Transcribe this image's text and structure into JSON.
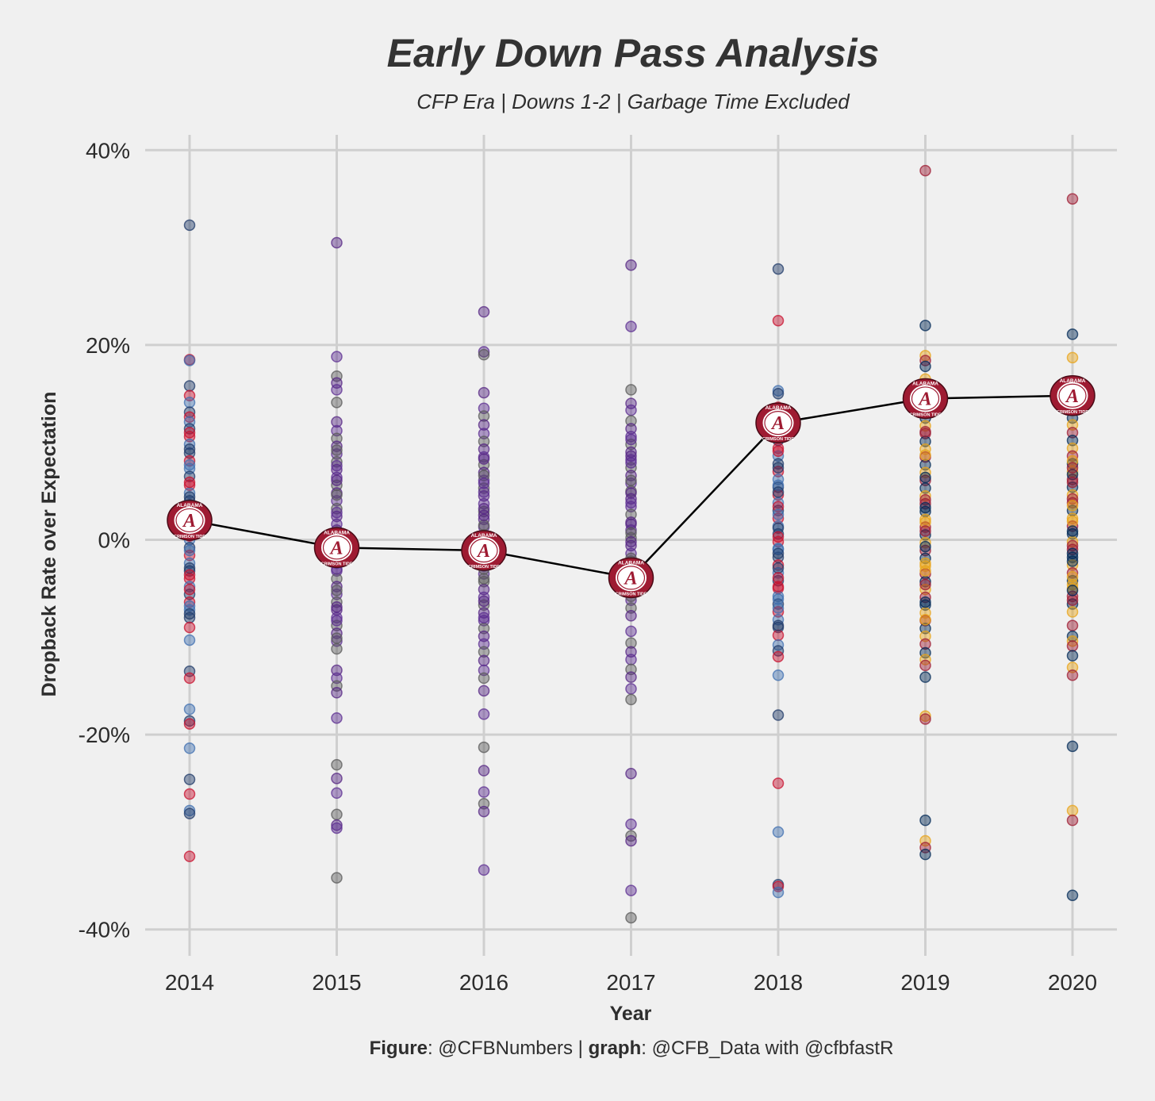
{
  "title": "Early Down Pass Analysis",
  "subtitle": "CFP Era | Downs 1-2 | Garbage Time Excluded",
  "footer": {
    "fig_label": "Figure",
    "fig_value": ": @CFBNumbers | ",
    "graph_label": "graph",
    "graph_value": ": @CFB_Data with @cfbfastR"
  },
  "logo": {
    "icon": "alabama-crimson-tide-logo",
    "text_top": "ALABAMA",
    "text_bottom": "CRIMSON TIDE",
    "letter": "A",
    "colors": {
      "crimson": "#9e1b32",
      "white": "#ffffff"
    }
  },
  "chart_data": {
    "type": "scatter",
    "xlabel": "Year",
    "ylabel": "Dropback Rate over Expectation",
    "x_ticks": [
      "2014",
      "2015",
      "2016",
      "2017",
      "2018",
      "2019",
      "2020"
    ],
    "y_ticks": [
      -40,
      -20,
      0,
      20,
      40
    ],
    "y_tick_labels": [
      "-40%",
      "-20%",
      "0%",
      "20%",
      "40%"
    ],
    "ylim": [
      -42,
      42
    ],
    "grid": true,
    "colors": [
      "#1f3a68",
      "#9e1b32",
      "#e31b23",
      "#0c2340",
      "#5a5a5a",
      "#3f6fb0",
      "#e8a317",
      "#f26522",
      "#1e5631",
      "#5c2d91",
      "#c8102e",
      "#002855",
      "#7a0019",
      "#c99700",
      "#552583"
    ],
    "series": [
      {
        "name": "",
        "type": "scatter",
        "x": [
          "2014",
          "2014",
          "2014",
          "2014",
          "2014",
          "2014",
          "2014",
          "2014",
          "2014",
          "2014",
          "2014",
          "2014",
          "2014",
          "2014",
          "2014",
          "2014",
          "2014",
          "2014",
          "2014",
          "2014",
          "2014",
          "2014",
          "2014",
          "2014",
          "2014",
          "2014",
          "2014",
          "2014",
          "2014",
          "2014",
          "2014",
          "2014",
          "2014",
          "2014",
          "2014",
          "2014",
          "2014",
          "2014",
          "2014",
          "2014",
          "2014",
          "2014",
          "2014",
          "2014",
          "2014",
          "2014",
          "2014",
          "2014",
          "2014",
          "2014",
          "2014",
          "2014",
          "2014",
          "2014",
          "2014",
          "2014",
          "2014",
          "2014",
          "2014",
          "2014",
          "2014",
          "2014"
        ],
        "y": [
          32.3,
          18.5,
          18.4,
          15.8,
          14.8,
          14.1,
          13.1,
          12.6,
          12.1,
          11.4,
          10.6,
          9.8,
          8.9,
          8.1,
          7.3,
          6.5,
          5.6,
          4.8,
          4.0,
          3.2,
          2.4,
          1.6,
          0.8,
          0.0,
          -0.8,
          -1.6,
          -2.4,
          -3.2,
          -4.0,
          -4.8,
          -5.6,
          -6.4,
          -7.2,
          -8.0,
          -9.0,
          -10.3,
          -13.5,
          -14.2,
          -17.4,
          -18.6,
          -18.9,
          -21.4,
          -24.6,
          -26.1,
          -27.8,
          -28.1,
          -32.5,
          1.2,
          3.6,
          5.9,
          7.7,
          9.3,
          11.0,
          -1.1,
          -2.9,
          -5.1,
          -6.8,
          -7.6,
          0.4,
          2.0,
          4.4,
          -3.6
        ]
      },
      {
        "name": "",
        "type": "scatter",
        "x": [
          "2015",
          "2015",
          "2015",
          "2015",
          "2015",
          "2015",
          "2015",
          "2015",
          "2015",
          "2015",
          "2015",
          "2015",
          "2015",
          "2015",
          "2015",
          "2015",
          "2015",
          "2015",
          "2015",
          "2015",
          "2015",
          "2015",
          "2015",
          "2015",
          "2015",
          "2015",
          "2015",
          "2015",
          "2015",
          "2015",
          "2015",
          "2015",
          "2015",
          "2015",
          "2015",
          "2015",
          "2015",
          "2015",
          "2015",
          "2015",
          "2015",
          "2015",
          "2015",
          "2015",
          "2015",
          "2015",
          "2015",
          "2015",
          "2015",
          "2015",
          "2015",
          "2015",
          "2015",
          "2015",
          "2015",
          "2015",
          "2015",
          "2015",
          "2015",
          "2015"
        ],
        "y": [
          30.5,
          18.8,
          16.8,
          16.1,
          15.4,
          14.1,
          12.1,
          11.2,
          10.4,
          9.6,
          8.8,
          8.0,
          7.2,
          6.4,
          5.6,
          4.8,
          4.0,
          3.2,
          2.4,
          1.6,
          0.8,
          0.0,
          -0.8,
          -1.6,
          -2.4,
          -3.2,
          -4.0,
          -4.8,
          -5.6,
          -6.4,
          -7.2,
          -8.0,
          -8.8,
          -9.6,
          -10.4,
          -11.2,
          -13.4,
          -14.2,
          -15.0,
          -15.7,
          -18.3,
          -23.1,
          -24.5,
          -26.0,
          -28.2,
          -29.3,
          -29.6,
          -34.7,
          1.0,
          2.8,
          4.6,
          6.1,
          7.6,
          9.2,
          -1.2,
          -3.0,
          -5.2,
          -6.9,
          -8.3,
          -10.1
        ]
      },
      {
        "name": "",
        "type": "scatter",
        "x": [
          "2016",
          "2016",
          "2016",
          "2016",
          "2016",
          "2016",
          "2016",
          "2016",
          "2016",
          "2016",
          "2016",
          "2016",
          "2016",
          "2016",
          "2016",
          "2016",
          "2016",
          "2016",
          "2016",
          "2016",
          "2016",
          "2016",
          "2016",
          "2016",
          "2016",
          "2016",
          "2016",
          "2016",
          "2016",
          "2016",
          "2016",
          "2016",
          "2016",
          "2016",
          "2016",
          "2016",
          "2016",
          "2016",
          "2016",
          "2016",
          "2016",
          "2016",
          "2016",
          "2016",
          "2016",
          "2016",
          "2016",
          "2016",
          "2016",
          "2016",
          "2016",
          "2016",
          "2016",
          "2016",
          "2016",
          "2016",
          "2016",
          "2016",
          "2016",
          "2016"
        ],
        "y": [
          23.4,
          19.3,
          19.0,
          15.1,
          13.5,
          12.7,
          11.8,
          10.9,
          10.1,
          9.3,
          8.5,
          7.7,
          6.9,
          6.1,
          5.3,
          4.5,
          3.7,
          2.9,
          2.1,
          1.3,
          0.5,
          -0.3,
          -1.1,
          -1.9,
          -2.7,
          -3.5,
          -4.3,
          -5.1,
          -5.9,
          -6.7,
          -7.5,
          -8.3,
          -9.1,
          -9.9,
          -10.7,
          -11.5,
          -12.4,
          -13.4,
          -14.2,
          -15.5,
          -17.9,
          -21.3,
          -23.7,
          -25.9,
          -27.1,
          -27.9,
          -33.9,
          1.5,
          3.2,
          4.9,
          6.6,
          8.3,
          -2.2,
          -4.0,
          -6.3,
          -8.0,
          -0.7,
          2.5,
          5.8,
          -3.0
        ]
      },
      {
        "name": "",
        "type": "scatter",
        "x": [
          "2017",
          "2017",
          "2017",
          "2017",
          "2017",
          "2017",
          "2017",
          "2017",
          "2017",
          "2017",
          "2017",
          "2017",
          "2017",
          "2017",
          "2017",
          "2017",
          "2017",
          "2017",
          "2017",
          "2017",
          "2017",
          "2017",
          "2017",
          "2017",
          "2017",
          "2017",
          "2017",
          "2017",
          "2017",
          "2017",
          "2017",
          "2017",
          "2017",
          "2017",
          "2017",
          "2017",
          "2017",
          "2017",
          "2017",
          "2017",
          "2017",
          "2017",
          "2017",
          "2017",
          "2017",
          "2017",
          "2017",
          "2017",
          "2017",
          "2017",
          "2017",
          "2017",
          "2017",
          "2017",
          "2017",
          "2017",
          "2017",
          "2017"
        ],
        "y": [
          28.2,
          21.9,
          15.4,
          14.0,
          13.3,
          12.2,
          11.4,
          10.6,
          9.8,
          9.0,
          8.2,
          7.4,
          6.6,
          5.8,
          5.0,
          4.2,
          3.4,
          2.6,
          1.8,
          1.0,
          0.2,
          -0.6,
          -1.4,
          -2.2,
          -3.0,
          -3.8,
          -4.6,
          -5.4,
          -6.2,
          -7.0,
          -7.8,
          -9.4,
          -10.6,
          -11.5,
          -12.3,
          -13.3,
          -14.1,
          -15.3,
          -16.4,
          -24.0,
          -29.2,
          -30.4,
          -30.9,
          -36.0,
          -38.8,
          1.6,
          3.8,
          6.1,
          8.6,
          10.3,
          -1.9,
          -4.1,
          -2.6,
          0.7,
          4.8,
          7.9,
          -5.8,
          -0.2
        ]
      },
      {
        "name": "",
        "type": "scatter",
        "x": [
          "2018",
          "2018",
          "2018",
          "2018",
          "2018",
          "2018",
          "2018",
          "2018",
          "2018",
          "2018",
          "2018",
          "2018",
          "2018",
          "2018",
          "2018",
          "2018",
          "2018",
          "2018",
          "2018",
          "2018",
          "2018",
          "2018",
          "2018",
          "2018",
          "2018",
          "2018",
          "2018",
          "2018",
          "2018",
          "2018",
          "2018",
          "2018",
          "2018",
          "2018",
          "2018",
          "2018",
          "2018",
          "2018",
          "2018",
          "2018",
          "2018",
          "2018",
          "2018",
          "2018",
          "2018",
          "2018",
          "2018",
          "2018",
          "2018",
          "2018",
          "2018",
          "2018",
          "2018",
          "2018",
          "2018",
          "2018",
          "2018",
          "2018"
        ],
        "y": [
          27.8,
          22.5,
          15.3,
          15.0,
          13.6,
          11.0,
          10.2,
          9.4,
          8.6,
          7.8,
          7.0,
          6.2,
          5.4,
          4.6,
          3.8,
          3.0,
          2.2,
          1.4,
          0.6,
          -0.2,
          -1.0,
          -1.8,
          -2.6,
          -3.4,
          -4.2,
          -5.0,
          -5.8,
          -6.6,
          -7.4,
          -8.2,
          -9.0,
          -9.8,
          -10.8,
          -11.4,
          -12.0,
          -13.9,
          -18.0,
          -25.0,
          -30.0,
          -35.4,
          -35.6,
          -36.2,
          1.2,
          3.4,
          5.6,
          7.4,
          9.1,
          -0.9,
          -2.9,
          -4.8,
          -7.0,
          -8.8,
          0.3,
          2.6,
          4.9,
          -3.9,
          -6.1,
          -1.4
        ]
      },
      {
        "name": "",
        "type": "scatter",
        "x": [
          "2019",
          "2019",
          "2019",
          "2019",
          "2019",
          "2019",
          "2019",
          "2019",
          "2019",
          "2019",
          "2019",
          "2019",
          "2019",
          "2019",
          "2019",
          "2019",
          "2019",
          "2019",
          "2019",
          "2019",
          "2019",
          "2019",
          "2019",
          "2019",
          "2019",
          "2019",
          "2019",
          "2019",
          "2019",
          "2019",
          "2019",
          "2019",
          "2019",
          "2019",
          "2019",
          "2019",
          "2019",
          "2019",
          "2019",
          "2019",
          "2019",
          "2019",
          "2019",
          "2019",
          "2019",
          "2019",
          "2019",
          "2019",
          "2019",
          "2019",
          "2019",
          "2019",
          "2019",
          "2019",
          "2019",
          "2019",
          "2019",
          "2019",
          "2019",
          "2019"
        ],
        "y": [
          37.9,
          22.0,
          18.9,
          18.4,
          17.8,
          16.5,
          13.3,
          12.5,
          11.7,
          10.9,
          10.1,
          9.3,
          8.5,
          7.7,
          6.9,
          6.1,
          5.3,
          4.5,
          3.7,
          2.9,
          2.1,
          1.3,
          0.5,
          -0.3,
          -1.1,
          -1.9,
          -2.7,
          -3.5,
          -4.3,
          -5.1,
          -5.9,
          -6.7,
          -7.5,
          -8.3,
          -9.1,
          -9.9,
          -10.7,
          -11.6,
          -12.3,
          -12.9,
          -14.1,
          -18.1,
          -18.4,
          -28.8,
          -30.9,
          -31.6,
          -32.3,
          1.8,
          4.1,
          6.4,
          8.7,
          11.1,
          -0.7,
          -2.4,
          -4.6,
          -6.4,
          -8.2,
          0.9,
          3.3,
          -3.2
        ]
      },
      {
        "name": "",
        "type": "scatter",
        "x": [
          "2020",
          "2020",
          "2020",
          "2020",
          "2020",
          "2020",
          "2020",
          "2020",
          "2020",
          "2020",
          "2020",
          "2020",
          "2020",
          "2020",
          "2020",
          "2020",
          "2020",
          "2020",
          "2020",
          "2020",
          "2020",
          "2020",
          "2020",
          "2020",
          "2020",
          "2020",
          "2020",
          "2020",
          "2020",
          "2020",
          "2020",
          "2020",
          "2020",
          "2020",
          "2020",
          "2020",
          "2020",
          "2020",
          "2020",
          "2020",
          "2020",
          "2020",
          "2020",
          "2020",
          "2020",
          "2020",
          "2020",
          "2020",
          "2020",
          "2020",
          "2020",
          "2020",
          "2020",
          "2020",
          "2020",
          "2020"
        ],
        "y": [
          35.0,
          21.1,
          18.7,
          16.3,
          12.5,
          11.8,
          11.0,
          10.2,
          9.4,
          8.6,
          7.8,
          7.0,
          6.2,
          5.4,
          4.6,
          3.8,
          3.0,
          2.2,
          1.4,
          0.6,
          -0.2,
          -1.0,
          -1.8,
          -2.6,
          -3.4,
          -4.2,
          -5.0,
          -5.8,
          -6.6,
          -7.4,
          -8.8,
          -9.9,
          -10.4,
          -10.9,
          -11.9,
          -13.1,
          -13.9,
          -21.2,
          -27.8,
          -28.8,
          -36.5,
          1.9,
          4.2,
          6.7,
          8.1,
          -0.6,
          -2.2,
          -4.6,
          -6.2,
          0.9,
          3.5,
          5.9,
          -1.4,
          -3.8,
          7.4,
          -5.2
        ]
      },
      {
        "name": "",
        "type": "line",
        "x": [
          "2014",
          "2015",
          "2016",
          "2017",
          "2018",
          "2019",
          "2020"
        ],
        "y": [
          2.0,
          -0.8,
          -1.1,
          -3.9,
          12.0,
          14.5,
          14.8
        ]
      }
    ]
  }
}
